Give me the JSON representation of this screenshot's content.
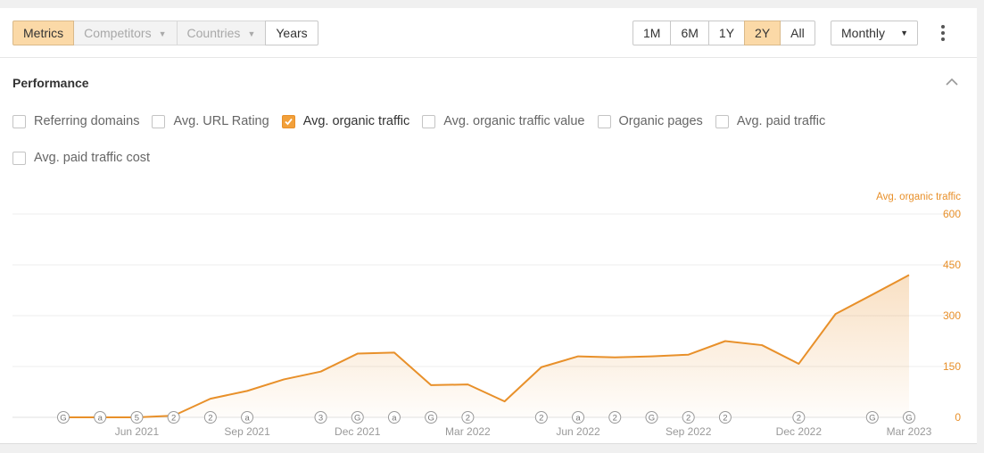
{
  "toolbar": {
    "left_tabs": [
      {
        "label": "Metrics",
        "state": "active"
      },
      {
        "label": "Competitors",
        "state": "disabled",
        "dropdown": true
      },
      {
        "label": "Countries",
        "state": "disabled",
        "dropdown": true
      },
      {
        "label": "Years",
        "state": "normal"
      }
    ],
    "ranges": [
      {
        "label": "1M",
        "state": "normal"
      },
      {
        "label": "6M",
        "state": "normal"
      },
      {
        "label": "1Y",
        "state": "normal"
      },
      {
        "label": "2Y",
        "state": "active"
      },
      {
        "label": "All",
        "state": "normal"
      }
    ],
    "interval_label": "Monthly",
    "caret_glyph": "▼",
    "more_icon": "kebab-menu-icon"
  },
  "section": {
    "title": "Performance",
    "collapse_icon": "chevron-up-icon"
  },
  "metrics": [
    {
      "label": "Referring domains",
      "checked": false
    },
    {
      "label": "Avg. URL Rating",
      "checked": false
    },
    {
      "label": "Avg. organic traffic",
      "checked": true
    },
    {
      "label": "Avg. organic traffic value",
      "checked": false
    },
    {
      "label": "Organic pages",
      "checked": false
    },
    {
      "label": "Avg. paid traffic",
      "checked": false
    },
    {
      "label": "Avg. paid traffic cost",
      "checked": false
    }
  ],
  "colors": {
    "accent": "#e8902a",
    "active_bg": "#fbd9a7",
    "grid": "#ececec",
    "axis_label": "#999999"
  },
  "chart_data": {
    "type": "area",
    "series": [
      {
        "name": "Avg. organic traffic",
        "values": [
          0,
          0,
          0,
          5,
          55,
          78,
          112,
          135,
          188,
          191,
          95,
          97,
          47,
          148,
          180,
          177,
          180,
          185,
          225,
          213,
          158,
          305,
          362,
          420
        ]
      }
    ],
    "y_axis_title": "Avg. organic traffic",
    "yticks": [
      0,
      150,
      300,
      450,
      600
    ],
    "ylim": [
      0,
      600
    ],
    "y_position": "right",
    "x_labels": [
      {
        "index": 2,
        "label": "Jun 2021"
      },
      {
        "index": 5,
        "label": "Sep 2021"
      },
      {
        "index": 8,
        "label": "Dec 2021"
      },
      {
        "index": 11,
        "label": "Mar 2022"
      },
      {
        "index": 14,
        "label": "Jun 2022"
      },
      {
        "index": 17,
        "label": "Sep 2022"
      },
      {
        "index": 20,
        "label": "Dec 2022"
      },
      {
        "index": 23,
        "label": "Mar 2023"
      }
    ],
    "markers": [
      {
        "index": 0,
        "label": "G"
      },
      {
        "index": 1,
        "label": "a"
      },
      {
        "index": 2,
        "label": "5"
      },
      {
        "index": 3,
        "label": "2"
      },
      {
        "index": 4,
        "label": "2"
      },
      {
        "index": 5,
        "label": "a"
      },
      {
        "index": 7,
        "label": "3"
      },
      {
        "index": 8,
        "label": "G"
      },
      {
        "index": 9,
        "label": "a"
      },
      {
        "index": 10,
        "label": "G"
      },
      {
        "index": 11,
        "label": "2"
      },
      {
        "index": 13,
        "label": "2"
      },
      {
        "index": 14,
        "label": "a"
      },
      {
        "index": 15,
        "label": "2"
      },
      {
        "index": 16,
        "label": "G"
      },
      {
        "index": 17,
        "label": "2"
      },
      {
        "index": 18,
        "label": "2"
      },
      {
        "index": 20,
        "label": "2"
      },
      {
        "index": 22,
        "label": "G"
      },
      {
        "index": 23,
        "label": "G"
      }
    ],
    "grid": true
  }
}
